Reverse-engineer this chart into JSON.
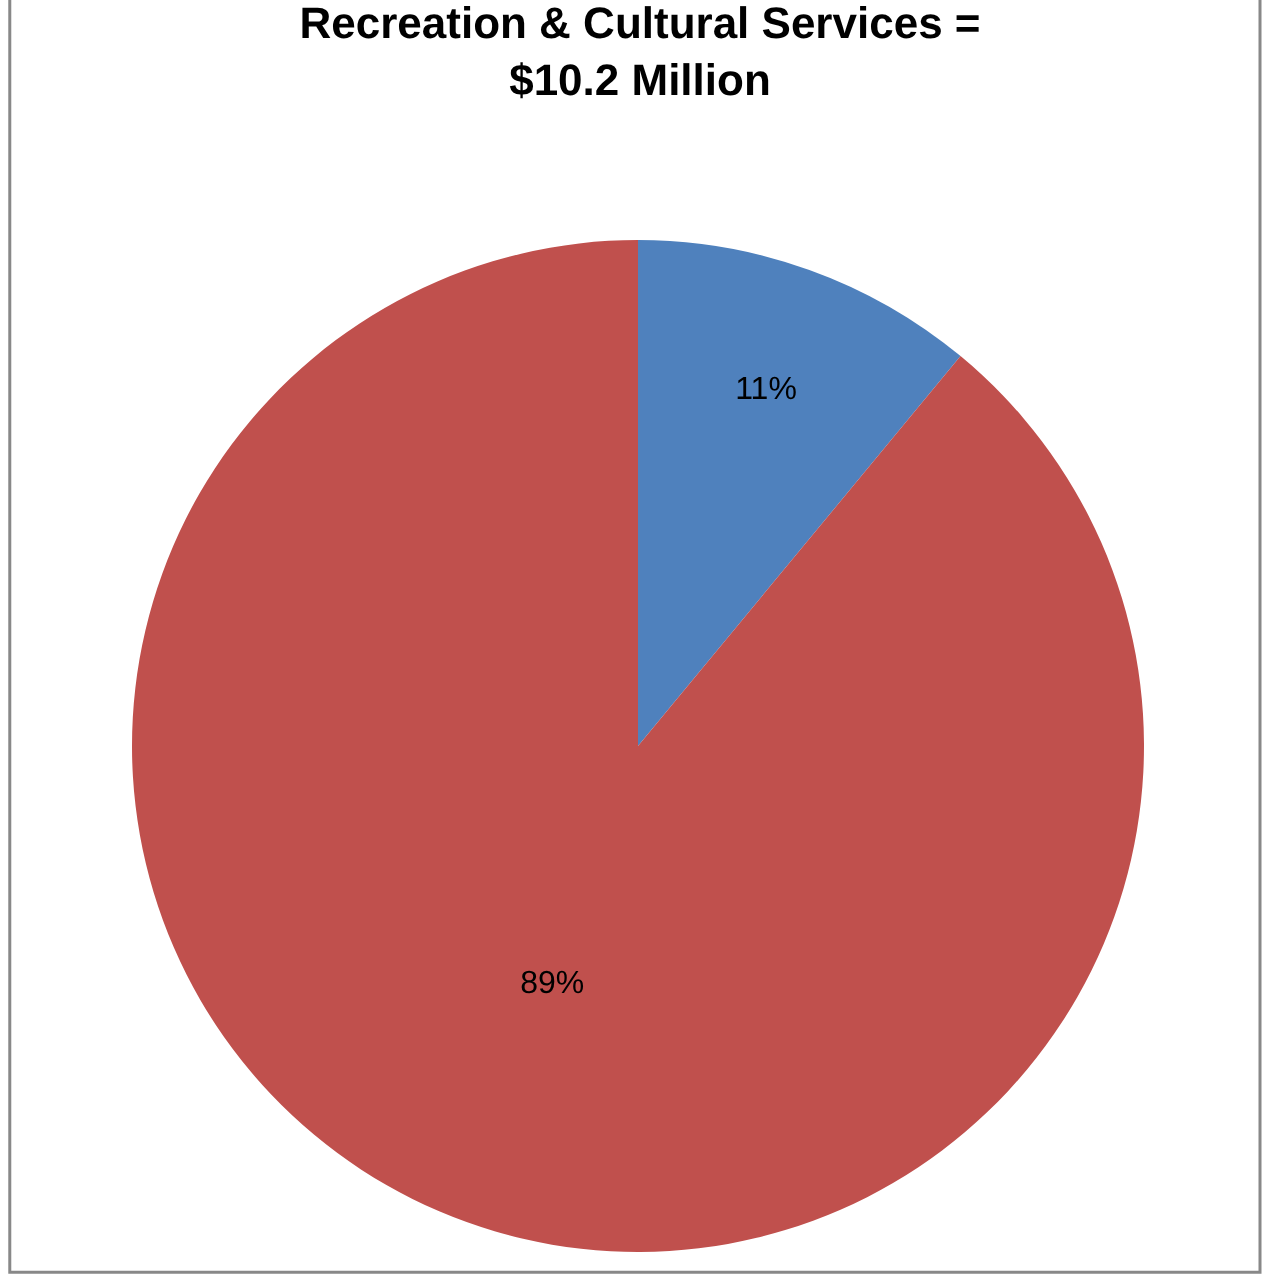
{
  "chart_data": {
    "type": "pie",
    "title": "Recreation & Cultural Services =\n$10.2 Million",
    "categories": [
      null,
      null
    ],
    "values": [
      11,
      89
    ],
    "colors": [
      "#4f81bd",
      "#c0504d"
    ],
    "value_labels": [
      "11%",
      "89%"
    ],
    "legend": false
  }
}
